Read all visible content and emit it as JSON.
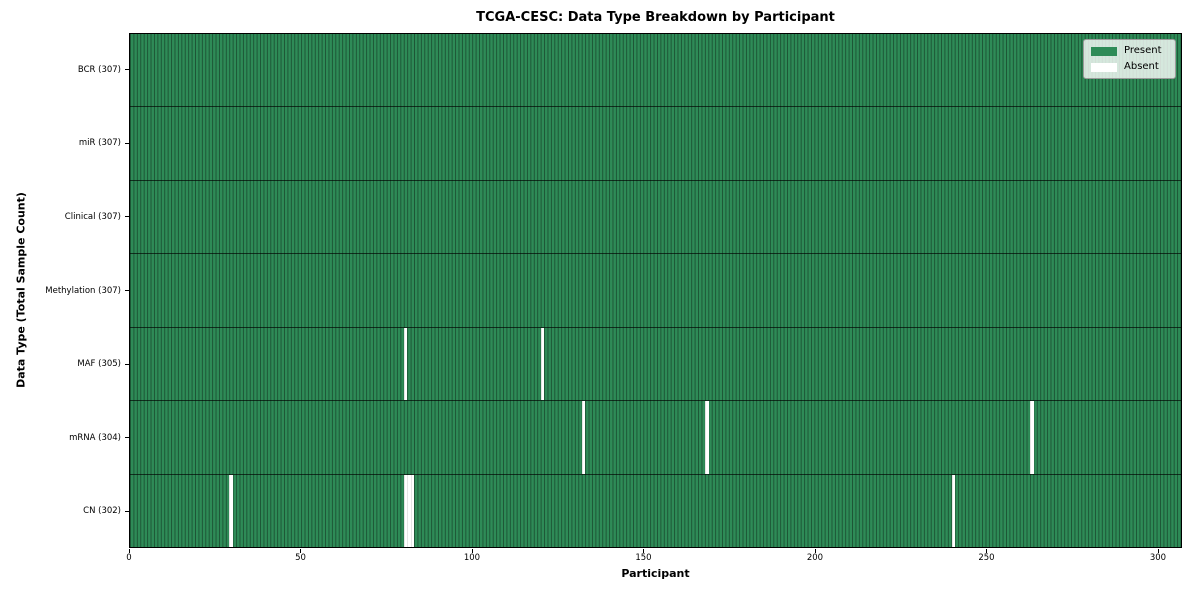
{
  "chart_data": {
    "type": "heatmap",
    "title": "TCGA-CESC: Data Type Breakdown by Participant",
    "xlabel": "Participant",
    "ylabel": "Data Type (Total Sample Count)",
    "n_participants": 307,
    "x_range": [
      0,
      307
    ],
    "x_ticks": [
      0,
      50,
      100,
      150,
      200,
      250,
      300
    ],
    "grid": false,
    "legend_position": "upper right",
    "legend_entries": [
      {
        "label": "Present",
        "color": "#2e8b57"
      },
      {
        "label": "Absent",
        "color": "#ffffff"
      }
    ],
    "rows": [
      {
        "label": "BCR (307)",
        "data_type": "BCR",
        "present_count": 307,
        "absent_participants": []
      },
      {
        "label": "miR (307)",
        "data_type": "miR",
        "present_count": 307,
        "absent_participants": []
      },
      {
        "label": "Clinical (307)",
        "data_type": "Clinical",
        "present_count": 307,
        "absent_participants": []
      },
      {
        "label": "Methylation (307)",
        "data_type": "Methylation",
        "present_count": 307,
        "absent_participants": []
      },
      {
        "label": "MAF (305)",
        "data_type": "MAF",
        "present_count": 305,
        "absent_participants": [
          80,
          120
        ]
      },
      {
        "label": "mRNA (304)",
        "data_type": "mRNA",
        "present_count": 304,
        "absent_participants": [
          132,
          168,
          263
        ]
      },
      {
        "label": "CN (302)",
        "data_type": "CN",
        "present_count": 302,
        "absent_participants": [
          29,
          80,
          81,
          82,
          240
        ]
      }
    ]
  }
}
